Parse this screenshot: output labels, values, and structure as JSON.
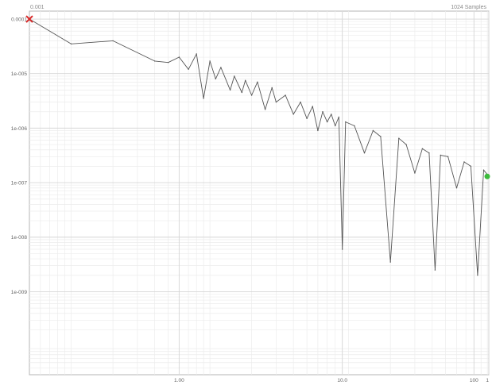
{
  "chart_data": {
    "type": "line",
    "title": "",
    "corner_label_left": "0.001",
    "corner_label_right": "1024 Samples",
    "xlabel": "",
    "ylabel": "",
    "x_scale": "log",
    "y_scale": "log",
    "xlim": [
      0.5,
      1024
    ],
    "ylim": [
      3e-11,
      0.00014
    ],
    "x_ticks": [
      {
        "value": 0.5,
        "label": ""
      },
      {
        "value": 6,
        "label": "1.00"
      },
      {
        "value": 90,
        "label": "10.0"
      },
      {
        "value": 800,
        "label": "100"
      },
      {
        "value": 1024,
        "label": "1"
      }
    ],
    "y_ticks": [
      {
        "value": 0.0001,
        "label": "0.0001"
      },
      {
        "value": 1e-05,
        "label": "1e-005"
      },
      {
        "value": 1e-06,
        "label": "1e-006"
      },
      {
        "value": 1e-07,
        "label": "1e-007"
      },
      {
        "value": 1e-08,
        "label": "1e-008"
      },
      {
        "value": 1e-09,
        "label": "1e-009"
      }
    ],
    "grid": true,
    "legend": "none",
    "start_marker": {
      "x": 0.5,
      "y": 0.0001,
      "symbol": "x",
      "color": "#d92b2b"
    },
    "end_marker": {
      "x": 1024,
      "y": 1.3e-07,
      "symbol": "dot",
      "color": "#3cba3c"
    },
    "line_color": "#555555",
    "series": [
      {
        "points": [
          [
            0.5,
            0.0001
          ],
          [
            1,
            3.5e-05
          ],
          [
            2,
            4e-05
          ],
          [
            4,
            1.7e-05
          ],
          [
            5,
            1.6e-05
          ],
          [
            6,
            2e-05
          ],
          [
            7,
            1.2e-05
          ],
          [
            8,
            2.3e-05
          ],
          [
            9,
            3.5e-06
          ],
          [
            10,
            1.7e-05
          ],
          [
            11,
            8e-06
          ],
          [
            12,
            1.3e-05
          ],
          [
            14,
            5e-06
          ],
          [
            15,
            9e-06
          ],
          [
            17,
            4.5e-06
          ],
          [
            18,
            7.5e-06
          ],
          [
            20,
            4e-06
          ],
          [
            22,
            7e-06
          ],
          [
            25,
            2.2e-06
          ],
          [
            28,
            5.5e-06
          ],
          [
            30,
            3e-06
          ],
          [
            35,
            4e-06
          ],
          [
            40,
            1.8e-06
          ],
          [
            45,
            3e-06
          ],
          [
            50,
            1.5e-06
          ],
          [
            55,
            2.5e-06
          ],
          [
            60,
            9e-07
          ],
          [
            65,
            2e-06
          ],
          [
            70,
            1.3e-06
          ],
          [
            75,
            1.8e-06
          ],
          [
            80,
            1.1e-06
          ],
          [
            85,
            1.6e-06
          ],
          [
            90,
            6e-09
          ],
          [
            95,
            1.3e-06
          ],
          [
            110,
            1.1e-06
          ],
          [
            130,
            3.5e-07
          ],
          [
            150,
            9e-07
          ],
          [
            170,
            7e-07
          ],
          [
            200,
            3.5e-09
          ],
          [
            230,
            6.5e-07
          ],
          [
            260,
            5e-07
          ],
          [
            300,
            1.5e-07
          ],
          [
            340,
            4.2e-07
          ],
          [
            380,
            3.5e-07
          ],
          [
            420,
            2.5e-09
          ],
          [
            460,
            3.2e-07
          ],
          [
            520,
            3e-07
          ],
          [
            600,
            8e-08
          ],
          [
            680,
            2.4e-07
          ],
          [
            760,
            2e-07
          ],
          [
            850,
            2e-09
          ],
          [
            940,
            1.7e-07
          ],
          [
            1024,
            1.3e-07
          ]
        ]
      }
    ]
  }
}
